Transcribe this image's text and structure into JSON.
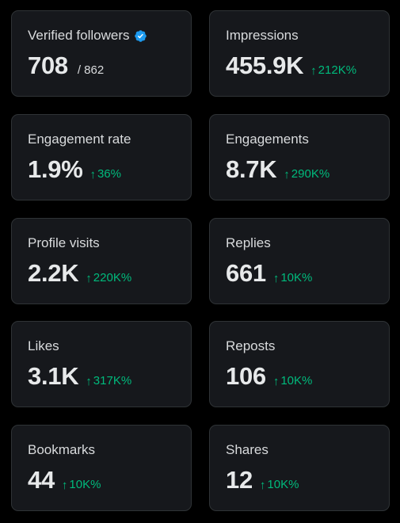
{
  "colors": {
    "background": "#000000",
    "card": "#16181c",
    "card_border": "#2f3336",
    "text": "#e7e9ea",
    "positive_change": "#00ba7c",
    "verified_badge": "#1d9bf0"
  },
  "metrics": {
    "verified_followers": {
      "label": "Verified followers",
      "value": "708",
      "total": "/ 862",
      "icon": "verified-badge-icon"
    },
    "impressions": {
      "label": "Impressions",
      "value": "455.9K",
      "change": "212K%",
      "change_icon": "arrow-up-icon"
    },
    "engagement_rate": {
      "label": "Engagement rate",
      "value": "1.9%",
      "change": "36%",
      "change_icon": "arrow-up-icon"
    },
    "engagements": {
      "label": "Engagements",
      "value": "8.7K",
      "change": "290K%",
      "change_icon": "arrow-up-icon"
    },
    "profile_visits": {
      "label": "Profile visits",
      "value": "2.2K",
      "change": "220K%",
      "change_icon": "arrow-up-icon"
    },
    "replies": {
      "label": "Replies",
      "value": "661",
      "change": "10K%",
      "change_icon": "arrow-up-icon"
    },
    "likes": {
      "label": "Likes",
      "value": "3.1K",
      "change": "317K%",
      "change_icon": "arrow-up-icon"
    },
    "reposts": {
      "label": "Reposts",
      "value": "106",
      "change": "10K%",
      "change_icon": "arrow-up-icon"
    },
    "bookmarks": {
      "label": "Bookmarks",
      "value": "44",
      "change": "10K%",
      "change_icon": "arrow-up-icon"
    },
    "shares": {
      "label": "Shares",
      "value": "12",
      "change": "10K%",
      "change_icon": "arrow-up-icon"
    }
  }
}
